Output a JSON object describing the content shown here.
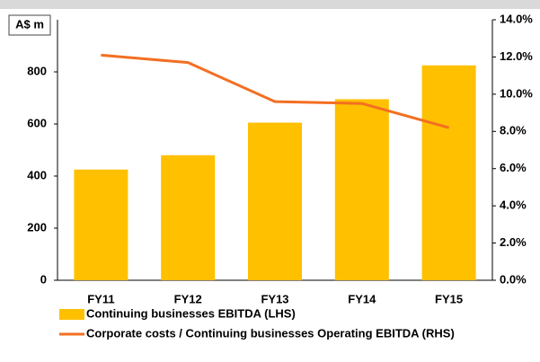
{
  "chart_data": {
    "type": "bar_line",
    "y_axis_label": "A$ m",
    "categories": [
      "FY11",
      "FY12",
      "FY13",
      "FY14",
      "FY15"
    ],
    "series": [
      {
        "name": "Continuing businesses EBITDA (LHS)",
        "type": "bar",
        "color": "#ffc000",
        "values": [
          425,
          480,
          605,
          695,
          825
        ]
      },
      {
        "name": "Corporate costs / Continuing businesses Operating EBITDA (RHS)",
        "type": "line",
        "axis": "y2",
        "color": "#f36f21",
        "values": [
          12.1,
          11.7,
          9.6,
          9.5,
          8.2
        ]
      }
    ],
    "ylim": [
      0,
      1000
    ],
    "yticks": [
      0,
      200,
      400,
      600,
      800
    ],
    "y2lim": [
      0,
      14
    ],
    "y2ticks": [
      {
        "value": 0,
        "label": "0.0%"
      },
      {
        "value": 2,
        "label": "2.0%"
      },
      {
        "value": 4,
        "label": "4.0%"
      },
      {
        "value": 6,
        "label": "6.0%"
      },
      {
        "value": 8,
        "label": "8.0%"
      },
      {
        "value": 10,
        "label": "10.0%"
      },
      {
        "value": 12,
        "label": "12.0%"
      },
      {
        "value": 14,
        "label": "14.0%"
      }
    ],
    "grid": false
  }
}
